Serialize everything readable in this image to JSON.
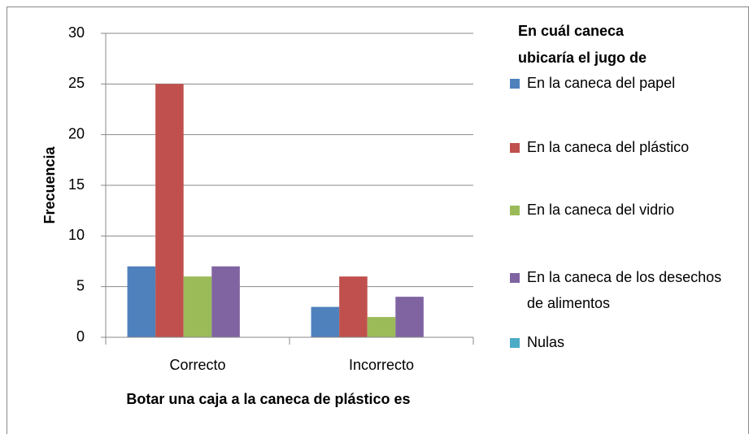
{
  "chart_data": {
    "type": "bar",
    "legend_title": "En cuál caneca ubicaría el jugo de",
    "x_label": "Botar una caja a la caneca de plástico es",
    "y_label": "Frecuencia",
    "categories": [
      "Correcto",
      "Incorrecto"
    ],
    "series": [
      {
        "name": "En la caneca del papel",
        "color": "#4f81bd",
        "values": [
          7,
          3
        ]
      },
      {
        "name": "En la caneca del plástico",
        "color": "#c0504d",
        "values": [
          25,
          6
        ]
      },
      {
        "name": "En la caneca del vidrio",
        "color": "#9bbb59",
        "values": [
          6,
          2
        ]
      },
      {
        "name": "En la caneca de los desechos de alimentos",
        "color": "#8064a2",
        "values": [
          7,
          4
        ]
      },
      {
        "name": "Nulas",
        "color": "#4bacc6",
        "values": [
          0,
          0
        ]
      }
    ],
    "ylim": [
      0,
      30
    ],
    "yticks": [
      0,
      5,
      10,
      15,
      20,
      25,
      30
    ],
    "grid": true,
    "legend": "right"
  }
}
